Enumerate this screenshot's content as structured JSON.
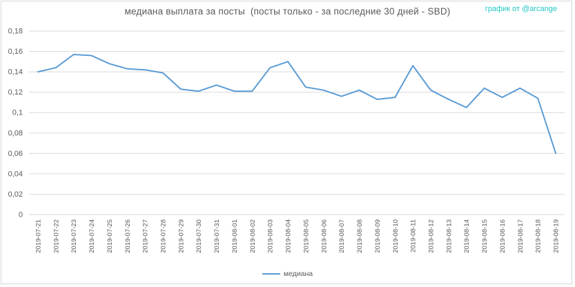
{
  "header": {
    "title": "медиана выплата за посты  (посты только - за последние 30 дней - SBD)",
    "watermark": "график от @arcange"
  },
  "legend": {
    "label": "медиана"
  },
  "colors": {
    "line": "#5b9bd5",
    "grid": "#d9d9d9",
    "axis_text": "#595959",
    "title_text": "#595959",
    "watermark_text": "#1fc7c5",
    "background": "#ffffff"
  },
  "chart_data": {
    "type": "line",
    "title": "медиана выплата за посты  (посты только - за последние 30 дней - SBD)",
    "xlabel": "",
    "ylabel": "",
    "categories": [
      "2019-07-21",
      "2019-07-22",
      "2019-07-23",
      "2019-07-24",
      "2019-07-25",
      "2019-07-26",
      "2019-07-27",
      "2019-07-28",
      "2019-07-29",
      "2019-07-30",
      "2019-07-31",
      "2019-08-01",
      "2019-08-02",
      "2019-08-03",
      "2019-08-04",
      "2019-08-05",
      "2019-08-06",
      "2019-08-07",
      "2019-08-08",
      "2019-08-09",
      "2019-08-10",
      "2019-08-11",
      "2019-08-12",
      "2019-08-13",
      "2019-08-14",
      "2019-08-15",
      "2019-08-16",
      "2019-08-17",
      "2019-08-18",
      "2019-08-19"
    ],
    "series": [
      {
        "name": "медиана",
        "values": [
          0.14,
          0.144,
          0.157,
          0.156,
          0.148,
          0.143,
          0.142,
          0.139,
          0.123,
          0.121,
          0.127,
          0.121,
          0.121,
          0.144,
          0.15,
          0.125,
          0.122,
          0.116,
          0.122,
          0.113,
          0.115,
          0.146,
          0.122,
          0.113,
          0.105,
          0.124,
          0.115,
          0.124,
          0.114,
          0.06
        ]
      }
    ],
    "ylim": [
      0,
      0.18
    ],
    "ytick_step": 0.02,
    "ytick_labels": [
      "0",
      "0,02",
      "0,04",
      "0,06",
      "0,08",
      "0,1",
      "0,12",
      "0,14",
      "0,16",
      "0,18"
    ],
    "decimal_separator": ",",
    "grid": true,
    "legend_position": "bottom"
  }
}
